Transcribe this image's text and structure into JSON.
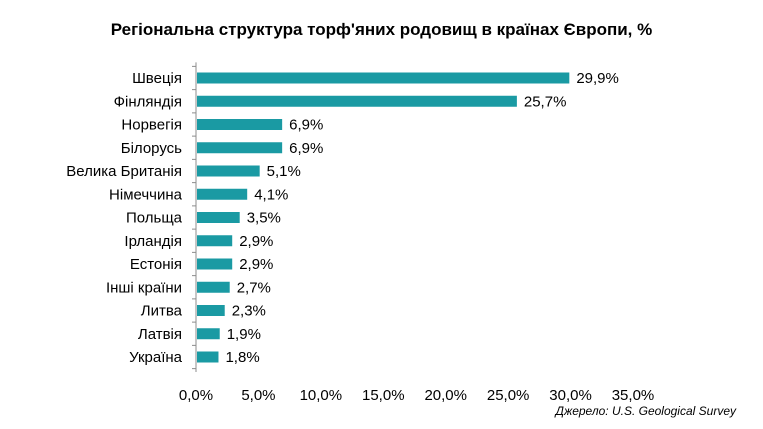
{
  "chart_data": {
    "type": "bar",
    "orientation": "horizontal",
    "title": "Регіональна структура торф'яних родовищ в країнах Європи, %",
    "categories": [
      "Швеція",
      "Фінляндія",
      "Норвегія",
      "Білорусь",
      "Велика Британія",
      "Німеччина",
      "Польща",
      "Ірландія",
      "Естонія",
      "Інші країни",
      "Литва",
      "Латвія",
      "Україна"
    ],
    "values": [
      29.9,
      25.7,
      6.9,
      6.9,
      5.1,
      4.1,
      3.5,
      2.9,
      2.9,
      2.7,
      2.3,
      1.9,
      1.8
    ],
    "data_labels": [
      "29,9%",
      "25,7%",
      "6,9%",
      "6,9%",
      "5,1%",
      "4,1%",
      "3,5%",
      "2,9%",
      "2,9%",
      "2,7%",
      "2,3%",
      "1,9%",
      "1,8%"
    ],
    "xlim": [
      0,
      35
    ],
    "x_ticks": [
      0,
      5,
      10,
      15,
      20,
      25,
      30,
      35
    ],
    "x_tick_labels": [
      "0,0%",
      "5,0%",
      "10,0%",
      "15,0%",
      "20,0%",
      "25,0%",
      "30,0%",
      "35,0%"
    ],
    "grid": false,
    "legend": "none",
    "bar_color": "#1a9aa3",
    "source": "Джерело: U.S. Geological Survey"
  }
}
